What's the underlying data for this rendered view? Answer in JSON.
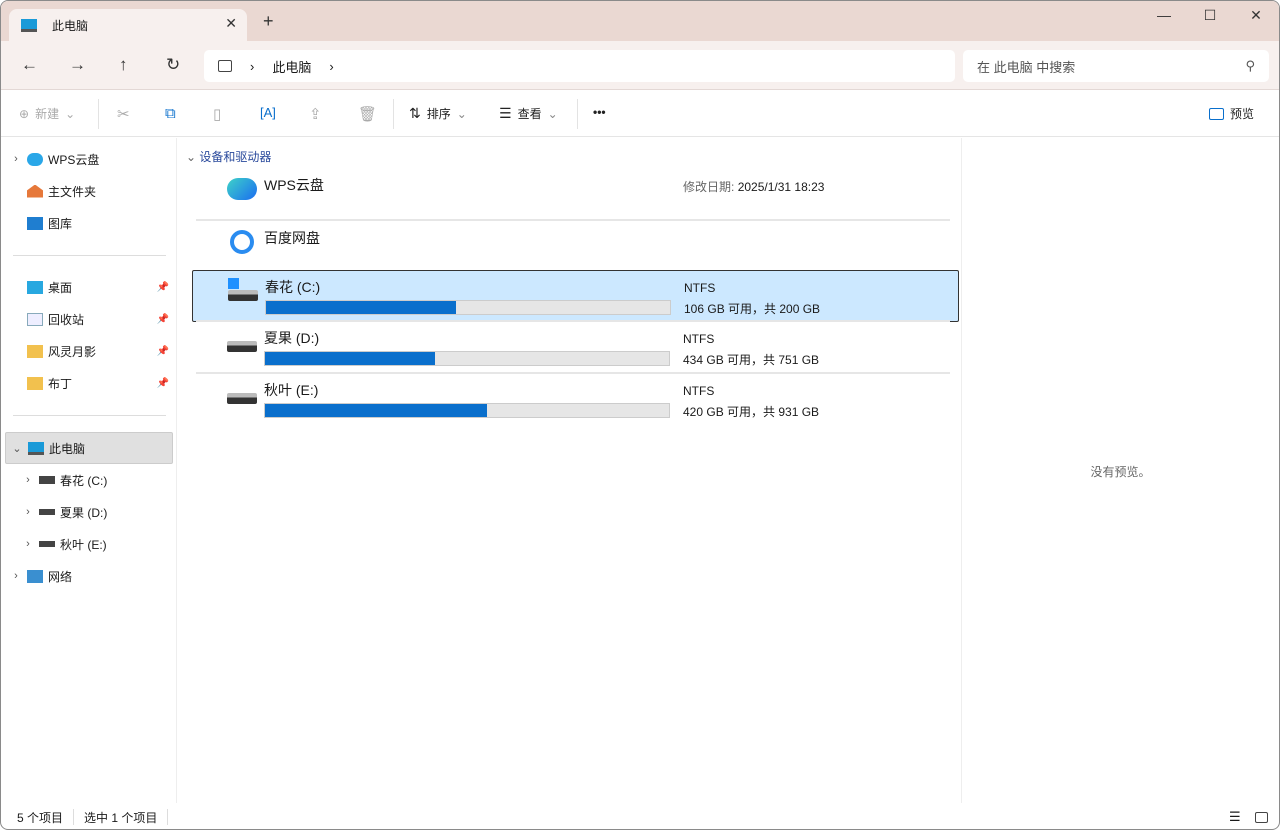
{
  "window": {
    "tab_title": "此电脑",
    "close_tab": "✕",
    "new_tab": "+",
    "minimize": "—",
    "maximize": "☐",
    "close": "✕"
  },
  "nav": {
    "back": "←",
    "forward": "→",
    "up": "↑",
    "refresh": "↻",
    "breadcrumb": [
      "此电脑"
    ],
    "search_placeholder": "在 此电脑 中搜索"
  },
  "toolbar": {
    "new": "新建",
    "sort": "排序",
    "view": "查看",
    "more": "•••",
    "preview": "预览"
  },
  "sidebar": {
    "top": [
      {
        "label": "WPS云盘",
        "icon": "cloud-icon"
      },
      {
        "label": "主文件夹",
        "icon": "home-icon"
      },
      {
        "label": "图库",
        "icon": "gallery-icon"
      }
    ],
    "pinned": [
      {
        "label": "桌面",
        "icon": "desktop-icon"
      },
      {
        "label": "回收站",
        "icon": "recycle-bin-icon"
      },
      {
        "label": "风灵月影",
        "icon": "folder-icon"
      },
      {
        "label": "布丁",
        "icon": "folder-icon"
      }
    ],
    "this_pc": "此电脑",
    "drives": [
      "春花 (C:)",
      "夏果 (D:)",
      "秋叶 (E:)"
    ],
    "network": "网络"
  },
  "main": {
    "group": "设备和驱动器",
    "wps": {
      "name": "WPS云盘",
      "modified_label": "修改日期:",
      "modified": "2025/1/31 18:23"
    },
    "baidu": {
      "name": "百度网盘"
    },
    "drives": [
      {
        "name": "春花 (C:)",
        "fs": "NTFS",
        "space": "106 GB 可用，共 200 GB",
        "used_pct": 47
      },
      {
        "name": "夏果 (D:)",
        "fs": "NTFS",
        "space": "434 GB 可用，共 751 GB",
        "used_pct": 42
      },
      {
        "name": "秋叶 (E:)",
        "fs": "NTFS",
        "space": "420 GB 可用，共 931 GB",
        "used_pct": 55
      }
    ]
  },
  "preview": {
    "empty": "没有预览。"
  },
  "status": {
    "count": "5 个项目",
    "selected": "选中 1 个项目"
  },
  "colors": {
    "accent": "#0a6fcc",
    "selection": "#cce8ff"
  }
}
